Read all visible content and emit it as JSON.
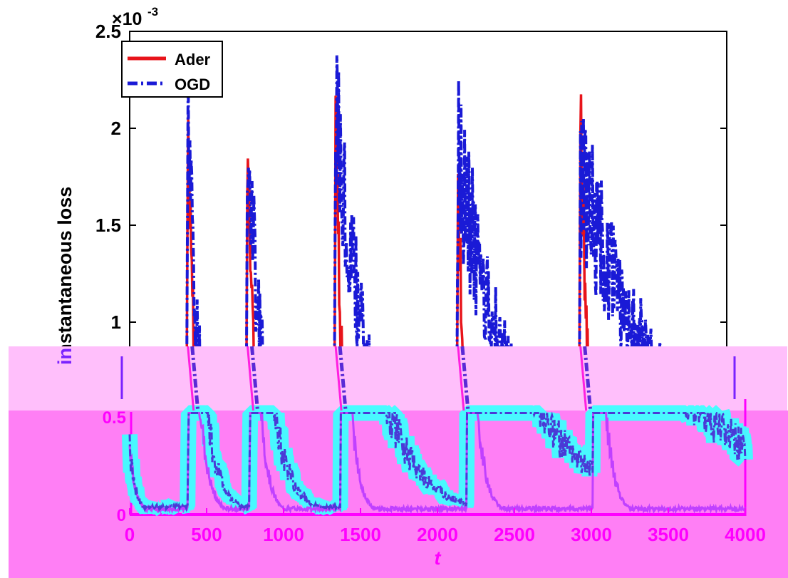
{
  "chart_data": {
    "type": "line",
    "ylabel": "instantaneous loss",
    "xlabel": "t",
    "y_exponent_label": "×10",
    "y_exponent_power": "-3",
    "xlim": [
      0,
      4000
    ],
    "ylim": [
      0,
      2.5
    ],
    "xticks": [
      "0",
      "500",
      "1000",
      "1500",
      "2000",
      "2500",
      "3000",
      "3500",
      "4000"
    ],
    "yticks": [
      "0",
      "0.5",
      "1",
      "1.5",
      "2",
      "2.5"
    ],
    "legend_position": "top-left",
    "grid": false,
    "spike_times": [
      390,
      790,
      1380,
      2200,
      3020
    ],
    "series": [
      {
        "name": "Ader",
        "color": "#e8141a",
        "style": "solid",
        "peaks": [
          1.95,
          1.98,
          1.95,
          1.7,
          2.1
        ],
        "decay": [
          55,
          50,
          50,
          55,
          55
        ],
        "floor": 0.03
      },
      {
        "name": "OGD",
        "color": "#1a1ad6",
        "style": "dash-dot",
        "peaks": [
          1.98,
          2.01,
          2.17,
          1.85,
          1.77
        ],
        "decay": [
          85,
          110,
          220,
          380,
          600
        ],
        "floor": 0.04
      }
    ],
    "overlay_colors": {
      "band_light": "#ffbffb",
      "band_dark": "#ff7ff5",
      "highlight": "#3fffff",
      "axis_magenta": "#ff00ff"
    }
  }
}
